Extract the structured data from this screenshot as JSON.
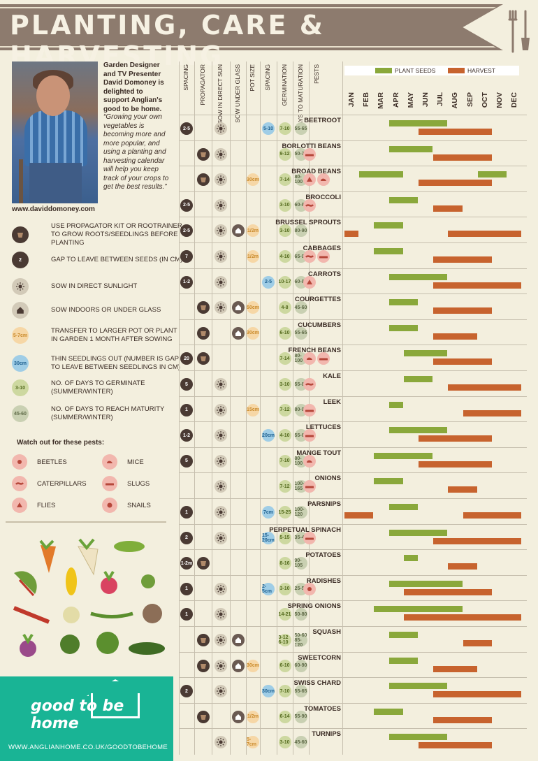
{
  "title": "PLANTING, CARE & HARVESTING",
  "colors": {
    "banner": "#8d7b6e",
    "sow": "#8aa83b",
    "harvest": "#c7632e",
    "brand": "#19b495",
    "dark": "#4a3a33"
  },
  "intro": "Garden Designer and TV Presenter David Domoney is delighted to support Anglian's good to be home.",
  "quote": "“Growing your own vegetables is becoming more and more popular, and using a planting and harvesting calendar will help you keep track of your crops to get the best results.”",
  "website": "www.daviddomoney.com",
  "legend": [
    {
      "icon": "pot-icon",
      "sample": "",
      "text": "USE PROPAGATOR KIT OR ROOTRAINER TO GROW ROOTS/SEEDLINGS BEFORE PLANTING"
    },
    {
      "icon": "spacing-icon",
      "sample": "2",
      "text": "GAP TO LEAVE BETWEEN SEEDS (IN CM)"
    },
    {
      "icon": "sun-icon",
      "sample": "",
      "text": "SOW IN DIRECT SUNLIGHT"
    },
    {
      "icon": "greenhouse-icon",
      "sample": "",
      "text": "SOW INDOORS OR UNDER GLASS"
    },
    {
      "icon": "pot-size-icon",
      "sample": "5-7cm",
      "text": "TRANSFER TO LARGER POT OR PLANT IN GARDEN 1 MONTH AFTER SOWING"
    },
    {
      "icon": "thin-icon",
      "sample": "30cm",
      "text": "THIN SEEDLINGS OUT (NUMBER IS GAP TO LEAVE BETWEEN SEEDLINGS IN CM)"
    },
    {
      "icon": "germinate-icon",
      "sample": "3-10",
      "text": "NO. OF DAYS TO GERMINATE (SUMMER/WINTER)"
    },
    {
      "icon": "maturity-icon",
      "sample": "45-60",
      "text": "NO. OF DAYS TO REACH MATURITY (SUMMER/WINTER)"
    }
  ],
  "pests_title": "Watch out for these pests:",
  "pests": [
    "BEETLES",
    "MICE",
    "CATERPILLARS",
    "SLUGS",
    "FLIES",
    "SNAILS"
  ],
  "brand": {
    "logo": "good to be home",
    "url": "WWW.ANGLIANHOME.CO.UK/GOODTOBEHOME"
  },
  "columns": [
    "SPACING",
    "PROPAGATOR",
    "SOW IN DIRECT SUN",
    "SOW UNDER GLASS",
    "POT SIZE",
    "SPACING",
    "GERMINATION",
    "DAYS TO MATURATION",
    "PESTS"
  ],
  "key": {
    "sow": "PLANT SEEDS",
    "harvest": "HARVEST"
  },
  "months": [
    "JAN",
    "FEB",
    "MAR",
    "APR",
    "MAY",
    "JUN",
    "JUL",
    "AUG",
    "SEP",
    "OCT",
    "NOV",
    "DEC"
  ],
  "crops": [
    {
      "name": "BEETROOT",
      "spacing": "2-5",
      "prop": false,
      "sun": true,
      "glass": false,
      "pot": "",
      "thin": "5-10",
      "germ": "7-10",
      "mat": "55-65",
      "pests": [],
      "sow": [
        [
          4,
          7
        ]
      ],
      "harvest": [
        [
          6,
          10
        ]
      ]
    },
    {
      "name": "BORLOTTI BEANS",
      "spacing": "",
      "prop": true,
      "sun": true,
      "glass": false,
      "pot": "",
      "thin": "",
      "germ": "9-12",
      "mat": "50-70",
      "pests": [
        "slug"
      ],
      "sow": [
        [
          4,
          6
        ]
      ],
      "harvest": [
        [
          7,
          10
        ]
      ]
    },
    {
      "name": "BROAD BEANS",
      "spacing": "",
      "prop": true,
      "sun": true,
      "glass": false,
      "pot": "30cm",
      "thin": "",
      "germ": "7-14",
      "mat": "80-100",
      "pests": [
        "fly",
        "mouse"
      ],
      "sow": [
        [
          2,
          4
        ],
        [
          10,
          11
        ]
      ],
      "harvest": [
        [
          6,
          10
        ]
      ]
    },
    {
      "name": "BROCCOLI",
      "spacing": "2-5",
      "prop": false,
      "sun": true,
      "glass": false,
      "pot": "",
      "thin": "",
      "germ": "3-10",
      "mat": "60-80",
      "pests": [
        "caterpillar"
      ],
      "sow": [
        [
          4,
          5
        ]
      ],
      "harvest": [
        [
          7,
          8
        ]
      ]
    },
    {
      "name": "BRUSSEL SPROUTS",
      "spacing": "2-5",
      "prop": false,
      "sun": true,
      "glass": true,
      "pot": "1/2m",
      "thin": "",
      "germ": "3-10",
      "mat": "80-90",
      "pests": [],
      "sow": [
        [
          3,
          4
        ]
      ],
      "harvest": [
        [
          1,
          1
        ],
        [
          8,
          12
        ]
      ]
    },
    {
      "name": "CABBAGES",
      "spacing": "7",
      "prop": false,
      "sun": true,
      "glass": false,
      "pot": "1/2m",
      "thin": "",
      "germ": "4-10",
      "mat": "65-95",
      "pests": [
        "caterpillar",
        "slug"
      ],
      "sow": [
        [
          3,
          4
        ]
      ],
      "harvest": [
        [
          7,
          10
        ]
      ]
    },
    {
      "name": "CARROTS",
      "spacing": "1-2",
      "prop": false,
      "sun": true,
      "glass": false,
      "pot": "",
      "thin": "2-5",
      "germ": "10-17",
      "mat": "60-80",
      "pests": [
        "fly"
      ],
      "sow": [
        [
          4,
          7
        ]
      ],
      "harvest": [
        [
          7,
          12
        ]
      ]
    },
    {
      "name": "COURGETTES",
      "spacing": "",
      "prop": true,
      "sun": true,
      "glass": true,
      "pot": "50cm",
      "thin": "",
      "germ": "4-8",
      "mat": "45-60",
      "pests": [],
      "sow": [
        [
          4,
          5
        ]
      ],
      "harvest": [
        [
          7,
          10
        ]
      ]
    },
    {
      "name": "CUCUMBERS",
      "spacing": "",
      "prop": true,
      "sun": false,
      "glass": true,
      "pot": "30cm",
      "thin": "",
      "germ": "6-10",
      "mat": "55-65",
      "pests": [],
      "sow": [
        [
          4,
          5
        ]
      ],
      "harvest": [
        [
          7,
          9
        ]
      ]
    },
    {
      "name": "FRENCH BEANS",
      "spacing": "20",
      "prop": true,
      "sun": false,
      "glass": false,
      "pot": "",
      "thin": "",
      "germ": "7-14",
      "mat": "80-100",
      "pests": [
        "mouse",
        "slug"
      ],
      "sow": [
        [
          5,
          7
        ]
      ],
      "harvest": [
        [
          7,
          10
        ]
      ]
    },
    {
      "name": "KALE",
      "spacing": "5",
      "prop": false,
      "sun": true,
      "glass": false,
      "pot": "",
      "thin": "",
      "germ": "3-10",
      "mat": "55-80",
      "pests": [
        "caterpillar"
      ],
      "sow": [
        [
          5,
          6
        ]
      ],
      "harvest": [
        [
          8,
          12
        ]
      ]
    },
    {
      "name": "LEEK",
      "spacing": "1",
      "prop": false,
      "sun": true,
      "glass": false,
      "pot": "15cm",
      "thin": "",
      "germ": "7-12",
      "mat": "80-90",
      "pests": [
        "slug"
      ],
      "sow": [
        [
          4,
          4
        ]
      ],
      "harvest": [
        [
          9,
          12
        ]
      ]
    },
    {
      "name": "LETTUCES",
      "spacing": "1-2",
      "prop": false,
      "sun": true,
      "glass": false,
      "pot": "",
      "thin": "20cm",
      "germ": "4-10",
      "mat": "55-60",
      "pests": [
        "slug"
      ],
      "sow": [
        [
          4,
          7
        ]
      ],
      "harvest": [
        [
          6,
          10
        ]
      ]
    },
    {
      "name": "MANGE TOUT",
      "spacing": "5",
      "prop": false,
      "sun": true,
      "glass": false,
      "pot": "",
      "thin": "",
      "germ": "7-10",
      "mat": "80-100",
      "pests": [
        "mouse"
      ],
      "sow": [
        [
          3,
          6
        ]
      ],
      "harvest": [
        [
          6,
          10
        ]
      ]
    },
    {
      "name": "ONIONS",
      "spacing": "",
      "prop": false,
      "sun": true,
      "glass": false,
      "pot": "",
      "thin": "",
      "germ": "7-12",
      "mat": "100-165",
      "pests": [
        "slug"
      ],
      "sow": [
        [
          3,
          4
        ]
      ],
      "harvest": [
        [
          8,
          9
        ]
      ]
    },
    {
      "name": "PARSNIPS",
      "spacing": "1",
      "prop": false,
      "sun": true,
      "glass": false,
      "pot": "",
      "thin": "7cm",
      "germ": "15-25",
      "mat": "100-120",
      "pests": [],
      "sow": [
        [
          4,
          5
        ]
      ],
      "harvest": [
        [
          1,
          2
        ],
        [
          9,
          12
        ]
      ]
    },
    {
      "name": "PERPETUAL SPINACH",
      "spacing": "2",
      "prop": false,
      "sun": true,
      "glass": false,
      "pot": "",
      "thin": "15-20cm",
      "germ": "5-15",
      "mat": "35-45",
      "pests": [
        "slug"
      ],
      "sow": [
        [
          4,
          7
        ]
      ],
      "harvest": [
        [
          7,
          12
        ]
      ]
    },
    {
      "name": "POTATOES",
      "spacing": "1-2m",
      "prop": true,
      "sun": false,
      "glass": false,
      "pot": "",
      "thin": "",
      "germ": "8-16",
      "mat": "90-105",
      "pests": [],
      "sow": [
        [
          5,
          5
        ]
      ],
      "harvest": [
        [
          8,
          9
        ]
      ]
    },
    {
      "name": "RADISHES",
      "spacing": "1",
      "prop": false,
      "sun": true,
      "glass": false,
      "pot": "",
      "thin": "2-5cm",
      "germ": "3-10",
      "mat": "25-50",
      "pests": [
        "beetle"
      ],
      "sow": [
        [
          4,
          8
        ]
      ],
      "harvest": [
        [
          5,
          10
        ]
      ]
    },
    {
      "name": "SPRING ONIONS",
      "spacing": "1",
      "prop": false,
      "sun": true,
      "glass": false,
      "pot": "",
      "thin": "",
      "germ": "14-21",
      "mat": "50-80",
      "pests": [],
      "sow": [
        [
          3,
          8
        ]
      ],
      "harvest": [
        [
          5,
          12
        ]
      ]
    },
    {
      "name": "SQUASH",
      "spacing": "",
      "prop": true,
      "sun": true,
      "glass": true,
      "pot": "",
      "thin": "",
      "germ": "3-12 6-10",
      "mat": "50-60 85-120",
      "pests": [],
      "sow": [
        [
          4,
          5
        ]
      ],
      "harvest": [
        [
          9,
          10
        ]
      ]
    },
    {
      "name": "SWEETCORN",
      "spacing": "",
      "prop": true,
      "sun": true,
      "glass": true,
      "pot": "30cm",
      "thin": "",
      "germ": "6-10",
      "mat": "60-90",
      "pests": [],
      "sow": [
        [
          4,
          5
        ]
      ],
      "harvest": [
        [
          7,
          9
        ]
      ]
    },
    {
      "name": "SWISS CHARD",
      "spacing": "2",
      "prop": false,
      "sun": true,
      "glass": false,
      "pot": "",
      "thin": "30cm",
      "germ": "7-10",
      "mat": "55-65",
      "pests": [],
      "sow": [
        [
          4,
          7
        ]
      ],
      "harvest": [
        [
          7,
          12
        ]
      ]
    },
    {
      "name": "TOMATOES",
      "spacing": "",
      "prop": true,
      "sun": false,
      "glass": true,
      "pot": "1/2m",
      "thin": "",
      "germ": "6-14",
      "mat": "55-90",
      "pests": [],
      "sow": [
        [
          3,
          4
        ]
      ],
      "harvest": [
        [
          7,
          10
        ]
      ]
    },
    {
      "name": "TURNIPS",
      "spacing": "",
      "prop": false,
      "sun": true,
      "glass": false,
      "pot": "5-7cm",
      "thin": "",
      "germ": "3-10",
      "mat": "45-60",
      "pests": [],
      "sow": [
        [
          4,
          7
        ]
      ],
      "harvest": [
        [
          6,
          10
        ]
      ]
    }
  ]
}
